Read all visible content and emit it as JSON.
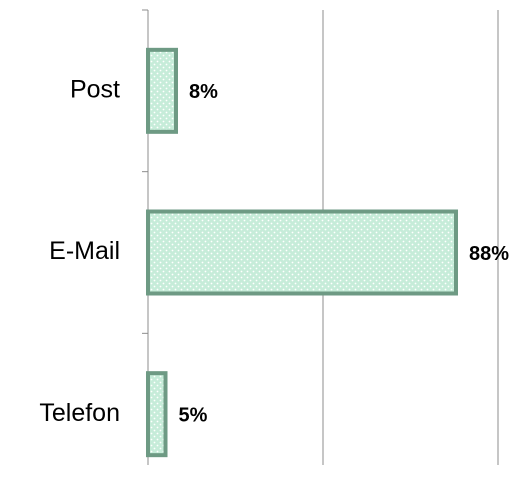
{
  "chart_data": {
    "type": "barh",
    "categories": [
      "Post",
      "E-Mail",
      "Telefon"
    ],
    "values": [
      8,
      88,
      5
    ],
    "value_labels": [
      "8%",
      "88%",
      "5%"
    ],
    "color": "#c6ecd9",
    "edge_color": "#6e9a84",
    "xlim": [
      0,
      100
    ],
    "xticks": [
      0,
      50,
      100
    ],
    "grid": true
  }
}
